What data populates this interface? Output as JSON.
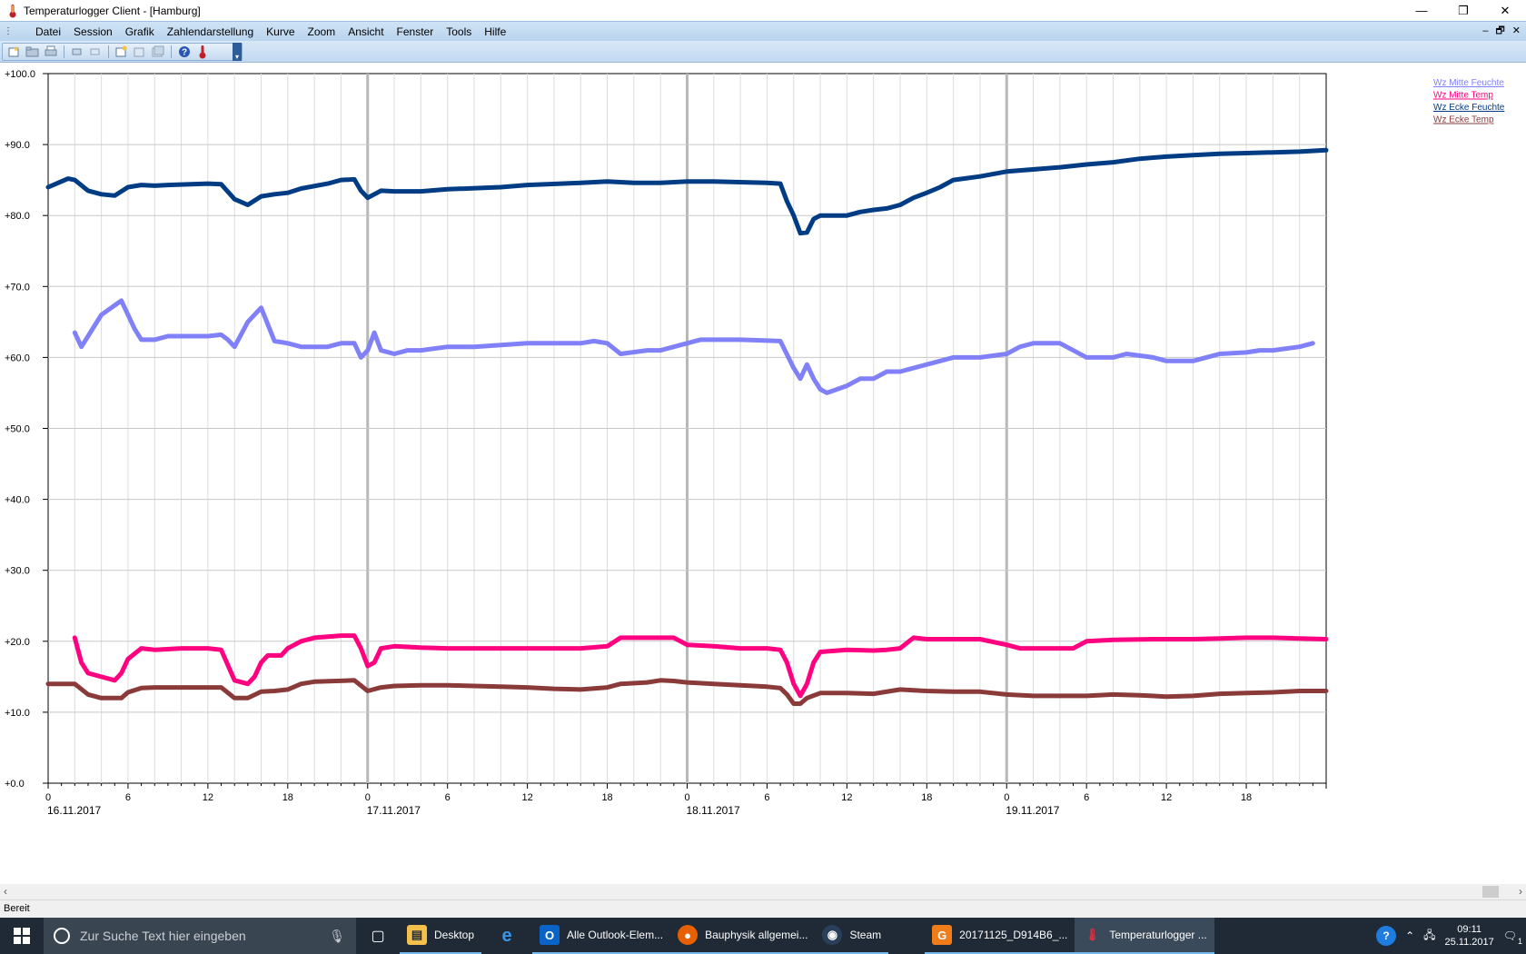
{
  "window": {
    "title": "Temperaturlogger Client - [Hamburg]",
    "controls": [
      "—",
      "❐",
      "✕"
    ]
  },
  "menu": {
    "items": [
      "Datei",
      "Session",
      "Grafik",
      "Zahlendarstellung",
      "Kurve",
      "Zoom",
      "Ansicht",
      "Fenster",
      "Tools",
      "Hilfe"
    ],
    "mdi_controls": [
      "–",
      "🗗",
      "✕"
    ]
  },
  "chart_data": {
    "type": "line",
    "title": "",
    "xlabel": "",
    "ylabel": "",
    "ylim": [
      0,
      100
    ],
    "yticks": [
      "+100.0",
      "+90.0",
      "+80.0",
      "+70.0",
      "+60.0",
      "+50.0",
      "+40.0",
      "+30.0",
      "+20.0",
      "+10.0",
      "+0.0"
    ],
    "xlim_hours": [
      0,
      96
    ],
    "xticks": [
      {
        "hour": 0,
        "label": "0"
      },
      {
        "hour": 6,
        "label": "6"
      },
      {
        "hour": 12,
        "label": "12"
      },
      {
        "hour": 18,
        "label": "18"
      },
      {
        "hour": 24,
        "label": "0"
      },
      {
        "hour": 30,
        "label": "6"
      },
      {
        "hour": 36,
        "label": "12"
      },
      {
        "hour": 42,
        "label": "18"
      },
      {
        "hour": 48,
        "label": "0"
      },
      {
        "hour": 54,
        "label": "6"
      },
      {
        "hour": 60,
        "label": "12"
      },
      {
        "hour": 66,
        "label": "18"
      },
      {
        "hour": 72,
        "label": "0"
      },
      {
        "hour": 78,
        "label": "6"
      },
      {
        "hour": 84,
        "label": "12"
      },
      {
        "hour": 90,
        "label": "18"
      }
    ],
    "dates": [
      {
        "hour": 0,
        "label": "16.11.2017"
      },
      {
        "hour": 24,
        "label": "17.11.2017"
      },
      {
        "hour": 48,
        "label": "18.11.2017"
      },
      {
        "hour": 72,
        "label": "19.11.2017"
      }
    ],
    "grid": true,
    "legend_position": "top-right",
    "series": [
      {
        "name": "Wz Mitte Feuchte",
        "color": "#8080f8",
        "points": [
          [
            2,
            63.5
          ],
          [
            2.5,
            61.5
          ],
          [
            4,
            66
          ],
          [
            5.5,
            68
          ],
          [
            6.5,
            64
          ],
          [
            7,
            62.5
          ],
          [
            8,
            62.5
          ],
          [
            9,
            63
          ],
          [
            12,
            63
          ],
          [
            13,
            63.2
          ],
          [
            13.5,
            62.5
          ],
          [
            14,
            61.5
          ],
          [
            15,
            65
          ],
          [
            16,
            67
          ],
          [
            17,
            62.3
          ],
          [
            18,
            62
          ],
          [
            19,
            61.5
          ],
          [
            21,
            61.5
          ],
          [
            22,
            62
          ],
          [
            23,
            62
          ],
          [
            23.5,
            60
          ],
          [
            24,
            61
          ],
          [
            24.5,
            63.5
          ],
          [
            25,
            61
          ],
          [
            26,
            60.5
          ],
          [
            27,
            61
          ],
          [
            28,
            61
          ],
          [
            30,
            61.5
          ],
          [
            32,
            61.5
          ],
          [
            36,
            62
          ],
          [
            40,
            62
          ],
          [
            41,
            62.3
          ],
          [
            42,
            62
          ],
          [
            43,
            60.5
          ],
          [
            45,
            61
          ],
          [
            46,
            61
          ],
          [
            47,
            61.5
          ],
          [
            48,
            62
          ],
          [
            49,
            62.5
          ],
          [
            52,
            62.5
          ],
          [
            55,
            62.3
          ],
          [
            56,
            58.5
          ],
          [
            56.5,
            57
          ],
          [
            57,
            59
          ],
          [
            57.5,
            57
          ],
          [
            58,
            55.5
          ],
          [
            58.5,
            55
          ],
          [
            60,
            56
          ],
          [
            61,
            57
          ],
          [
            62,
            57
          ],
          [
            63,
            58
          ],
          [
            64,
            58
          ],
          [
            65,
            58.5
          ],
          [
            66,
            59
          ],
          [
            68,
            60
          ],
          [
            70,
            60
          ],
          [
            72,
            60.5
          ],
          [
            73,
            61.5
          ],
          [
            74,
            62
          ],
          [
            76,
            62
          ],
          [
            77,
            61
          ],
          [
            78,
            60
          ],
          [
            80,
            60
          ],
          [
            81,
            60.5
          ],
          [
            83,
            60
          ],
          [
            84,
            59.5
          ],
          [
            86,
            59.5
          ],
          [
            87,
            60
          ],
          [
            88,
            60.5
          ],
          [
            90,
            60.7
          ],
          [
            91,
            61
          ],
          [
            92,
            61
          ],
          [
            94,
            61.5
          ],
          [
            95,
            62
          ]
        ]
      },
      {
        "name": "Wz Mitte Temp",
        "color": "#ff0080",
        "points": [
          [
            2,
            20.5
          ],
          [
            2.5,
            17
          ],
          [
            3,
            15.5
          ],
          [
            4,
            15
          ],
          [
            5,
            14.5
          ],
          [
            5.5,
            15.5
          ],
          [
            6,
            17.5
          ],
          [
            7,
            19
          ],
          [
            8,
            18.8
          ],
          [
            10,
            19
          ],
          [
            12,
            19
          ],
          [
            13,
            18.8
          ],
          [
            14,
            14.5
          ],
          [
            15,
            14
          ],
          [
            15.5,
            15
          ],
          [
            16,
            17
          ],
          [
            16.5,
            18
          ],
          [
            17.5,
            18
          ],
          [
            18,
            19
          ],
          [
            19,
            20
          ],
          [
            20,
            20.5
          ],
          [
            22,
            20.8
          ],
          [
            23,
            20.8
          ],
          [
            23.5,
            19
          ],
          [
            24,
            16.5
          ],
          [
            24.5,
            17
          ],
          [
            25,
            19
          ],
          [
            26,
            19.3
          ],
          [
            28,
            19.1
          ],
          [
            30,
            19
          ],
          [
            32,
            19
          ],
          [
            36,
            19
          ],
          [
            40,
            19
          ],
          [
            42,
            19.3
          ],
          [
            43,
            20.5
          ],
          [
            45,
            20.5
          ],
          [
            46,
            20.5
          ],
          [
            47,
            20.5
          ],
          [
            48,
            19.5
          ],
          [
            50,
            19.3
          ],
          [
            52,
            19
          ],
          [
            54,
            19
          ],
          [
            55,
            18.8
          ],
          [
            55.5,
            17
          ],
          [
            56,
            14
          ],
          [
            56.5,
            12.3
          ],
          [
            57,
            14
          ],
          [
            57.5,
            17
          ],
          [
            58,
            18.5
          ],
          [
            60,
            18.8
          ],
          [
            62,
            18.7
          ],
          [
            63,
            18.8
          ],
          [
            64,
            19
          ],
          [
            65,
            20.5
          ],
          [
            66,
            20.3
          ],
          [
            68,
            20.3
          ],
          [
            70,
            20.3
          ],
          [
            72,
            19.5
          ],
          [
            73,
            19
          ],
          [
            75,
            19
          ],
          [
            77,
            19
          ],
          [
            78,
            20
          ],
          [
            80,
            20.2
          ],
          [
            83,
            20.3
          ],
          [
            86,
            20.3
          ],
          [
            88,
            20.4
          ],
          [
            90,
            20.5
          ],
          [
            92,
            20.5
          ],
          [
            94,
            20.4
          ],
          [
            96,
            20.3
          ]
        ]
      },
      {
        "name": "Wz Ecke Feuchte",
        "color": "#003c84",
        "points": [
          [
            0,
            84
          ],
          [
            1,
            84.8
          ],
          [
            1.5,
            85.2
          ],
          [
            2,
            85
          ],
          [
            3,
            83.5
          ],
          [
            4,
            83
          ],
          [
            5,
            82.8
          ],
          [
            6,
            84
          ],
          [
            7,
            84.3
          ],
          [
            8,
            84.2
          ],
          [
            9,
            84.3
          ],
          [
            12,
            84.5
          ],
          [
            13,
            84.4
          ],
          [
            14,
            82.3
          ],
          [
            15,
            81.5
          ],
          [
            16,
            82.7
          ],
          [
            17,
            83
          ],
          [
            18,
            83.2
          ],
          [
            19,
            83.8
          ],
          [
            21,
            84.5
          ],
          [
            22,
            85
          ],
          [
            23,
            85.1
          ],
          [
            23.5,
            83.5
          ],
          [
            24,
            82.5
          ],
          [
            25,
            83.5
          ],
          [
            26,
            83.4
          ],
          [
            28,
            83.4
          ],
          [
            30,
            83.7
          ],
          [
            34,
            84
          ],
          [
            36,
            84.3
          ],
          [
            40,
            84.6
          ],
          [
            42,
            84.8
          ],
          [
            44,
            84.6
          ],
          [
            46,
            84.6
          ],
          [
            48,
            84.8
          ],
          [
            50,
            84.8
          ],
          [
            54,
            84.6
          ],
          [
            55,
            84.5
          ],
          [
            55.5,
            82
          ],
          [
            56,
            80
          ],
          [
            56.5,
            77.5
          ],
          [
            57,
            77.6
          ],
          [
            57.5,
            79.5
          ],
          [
            58,
            80
          ],
          [
            59,
            80
          ],
          [
            60,
            80
          ],
          [
            61,
            80.5
          ],
          [
            62,
            80.8
          ],
          [
            63,
            81
          ],
          [
            64,
            81.5
          ],
          [
            65,
            82.5
          ],
          [
            66,
            83.2
          ],
          [
            67,
            84
          ],
          [
            68,
            85
          ],
          [
            70,
            85.5
          ],
          [
            72,
            86.2
          ],
          [
            76,
            86.8
          ],
          [
            78,
            87.2
          ],
          [
            80,
            87.5
          ],
          [
            82,
            88
          ],
          [
            84,
            88.3
          ],
          [
            86,
            88.5
          ],
          [
            88,
            88.7
          ],
          [
            90,
            88.8
          ],
          [
            92,
            88.9
          ],
          [
            94,
            89
          ],
          [
            96,
            89.2
          ]
        ]
      },
      {
        "name": "Wz Ecke Temp",
        "color": "#8b3a3a",
        "points": [
          [
            0,
            14
          ],
          [
            2,
            14
          ],
          [
            3,
            12.5
          ],
          [
            4,
            12
          ],
          [
            5,
            12
          ],
          [
            5.5,
            12
          ],
          [
            6,
            12.8
          ],
          [
            7,
            13.4
          ],
          [
            8,
            13.5
          ],
          [
            10,
            13.5
          ],
          [
            12,
            13.5
          ],
          [
            13,
            13.5
          ],
          [
            14,
            12
          ],
          [
            15,
            12
          ],
          [
            16,
            12.9
          ],
          [
            17,
            13
          ],
          [
            18,
            13.2
          ],
          [
            19,
            14
          ],
          [
            20,
            14.3
          ],
          [
            23,
            14.5
          ],
          [
            24,
            13
          ],
          [
            25,
            13.5
          ],
          [
            26,
            13.7
          ],
          [
            28,
            13.8
          ],
          [
            30,
            13.8
          ],
          [
            34,
            13.6
          ],
          [
            36,
            13.5
          ],
          [
            38,
            13.3
          ],
          [
            40,
            13.2
          ],
          [
            42,
            13.5
          ],
          [
            43,
            14
          ],
          [
            45,
            14.2
          ],
          [
            46,
            14.5
          ],
          [
            47,
            14.4
          ],
          [
            48,
            14.2
          ],
          [
            50,
            14
          ],
          [
            52,
            13.8
          ],
          [
            54,
            13.6
          ],
          [
            55,
            13.4
          ],
          [
            55.5,
            12.5
          ],
          [
            56,
            11.2
          ],
          [
            56.5,
            11.2
          ],
          [
            57,
            12
          ],
          [
            58,
            12.7
          ],
          [
            60,
            12.7
          ],
          [
            62,
            12.6
          ],
          [
            64,
            13.2
          ],
          [
            66,
            13
          ],
          [
            68,
            12.9
          ],
          [
            70,
            12.9
          ],
          [
            72,
            12.5
          ],
          [
            74,
            12.3
          ],
          [
            76,
            12.3
          ],
          [
            78,
            12.3
          ],
          [
            80,
            12.5
          ],
          [
            82,
            12.4
          ],
          [
            84,
            12.2
          ],
          [
            86,
            12.3
          ],
          [
            88,
            12.6
          ],
          [
            90,
            12.7
          ],
          [
            92,
            12.8
          ],
          [
            94,
            13
          ],
          [
            96,
            13
          ]
        ]
      }
    ]
  },
  "scroll": {
    "left": "‹",
    "right": "›"
  },
  "status": {
    "text": "Bereit"
  },
  "taskbar": {
    "search_placeholder": "Zur Suche Text hier eingeben",
    "tasks": [
      {
        "label": "Desktop",
        "icon": "folder-icon",
        "color": "#f3c14b"
      },
      {
        "label": "",
        "icon": "edge-icon",
        "color": "#0078d7"
      },
      {
        "label": "Alle Outlook-Elem...",
        "icon": "outlook-icon",
        "color": "#0a64c8"
      },
      {
        "label": "Bauphysik allgemei...",
        "icon": "firefox-icon",
        "color": "#e66000"
      },
      {
        "label": "Steam",
        "icon": "steam-icon",
        "color": "#1b2838"
      },
      {
        "label": "20171125_D914B6_...",
        "icon": "image-viewer-icon",
        "color": "#f07d1a"
      },
      {
        "label": "Temperaturlogger ...",
        "icon": "thermometer-icon",
        "color": "#c0202a"
      }
    ],
    "clock_time": "09:11",
    "clock_date": "25.11.2017",
    "notification_count": "1"
  }
}
